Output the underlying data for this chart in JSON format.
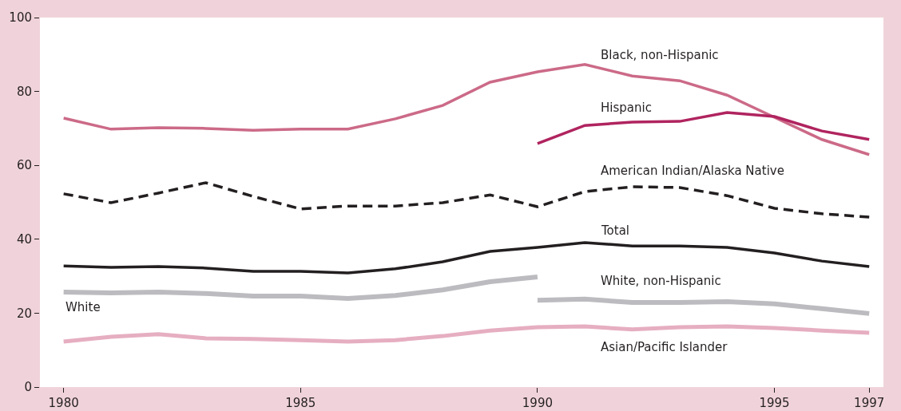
{
  "chart_data": {
    "type": "line",
    "x": [
      1980,
      1981,
      1982,
      1983,
      1984,
      1985,
      1986,
      1987,
      1988,
      1989,
      1990,
      1991,
      1992,
      1993,
      1994,
      1995,
      1996,
      1997
    ],
    "xlim": [
      1979.5,
      1997.3
    ],
    "xticks": [
      1980,
      1985,
      1990,
      1995,
      1997
    ],
    "ylim": [
      0,
      100
    ],
    "yticks": [
      0,
      20,
      40,
      60,
      80,
      100
    ],
    "marker": "none",
    "series": [
      {
        "name": "Black, non-Hispanic",
        "color": "#cc6a88",
        "values": [
          72.8,
          69.8,
          70.2,
          70,
          69.5,
          69.8,
          69.8,
          72.6,
          76.2,
          82.5,
          85.3,
          87.3,
          84.2,
          82.9,
          79,
          73,
          67,
          62.9
        ]
      },
      {
        "name": "Hispanic",
        "color": "#b0245f",
        "values": [
          null,
          null,
          null,
          null,
          null,
          null,
          null,
          null,
          null,
          null,
          65.9,
          70.8,
          71.7,
          71.9,
          74.3,
          73.2,
          69.3,
          67
        ]
      },
      {
        "name": "American Indian/Alaska Native",
        "color": "#231f20",
        "line_style": "dashed",
        "values": [
          52.3,
          49.9,
          52.5,
          55.3,
          51.6,
          48.2,
          49,
          49,
          49.9,
          52,
          48.8,
          52.9,
          54.2,
          54,
          51.8,
          48.4,
          46.9,
          46
        ]
      },
      {
        "name": "Total",
        "color": "#231f20",
        "values": [
          32.8,
          32.4,
          32.6,
          32.2,
          31.3,
          31.3,
          30.9,
          32,
          33.9,
          36.7,
          37.8,
          39.1,
          38.2,
          38.2,
          37.8,
          36.3,
          34.1,
          32.6
        ]
      },
      {
        "name": "White",
        "color": "#bcbcc0",
        "values": [
          25.7,
          25.5,
          25.7,
          25.3,
          24.6,
          24.6,
          24,
          24.8,
          26.3,
          28.5,
          29.8,
          null,
          null,
          null,
          null,
          null,
          null,
          null
        ]
      },
      {
        "name": "White, non-Hispanic",
        "color": "#bcbcc0",
        "values": [
          null,
          null,
          null,
          null,
          null,
          null,
          null,
          null,
          null,
          null,
          23.5,
          23.8,
          22.9,
          22.9,
          23.1,
          22.5,
          21.2,
          19.9
        ]
      },
      {
        "name": "Asian/Pacific Islander",
        "color": "#e6aec1",
        "values": [
          12.3,
          13.6,
          14.3,
          13.2,
          13,
          12.7,
          12.3,
          12.7,
          13.8,
          15.3,
          16.2,
          16.4,
          15.6,
          16.2,
          16.4,
          16,
          15.3,
          14.7
        ]
      }
    ]
  }
}
